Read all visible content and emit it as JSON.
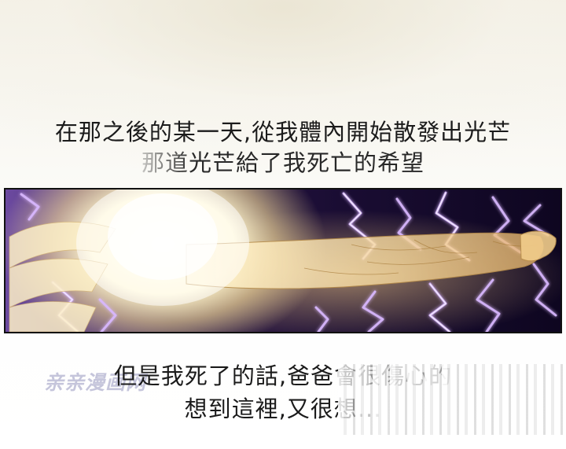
{
  "captions": {
    "line1": "在那之後的某一天,從我體內開始散發出光芒",
    "line2": "那道光芒給了我死亡的希望",
    "line3": "但是我死了的話,爸爸會很傷心的",
    "line4": "想到這裡,又很想..."
  },
  "watermark": "亲亲漫画网",
  "panel": {
    "scene": "glowing-figure-lightning",
    "colors": {
      "glow": "#fff6cf",
      "lightning": "#c9a3ff",
      "background": "#1a0d33"
    }
  }
}
